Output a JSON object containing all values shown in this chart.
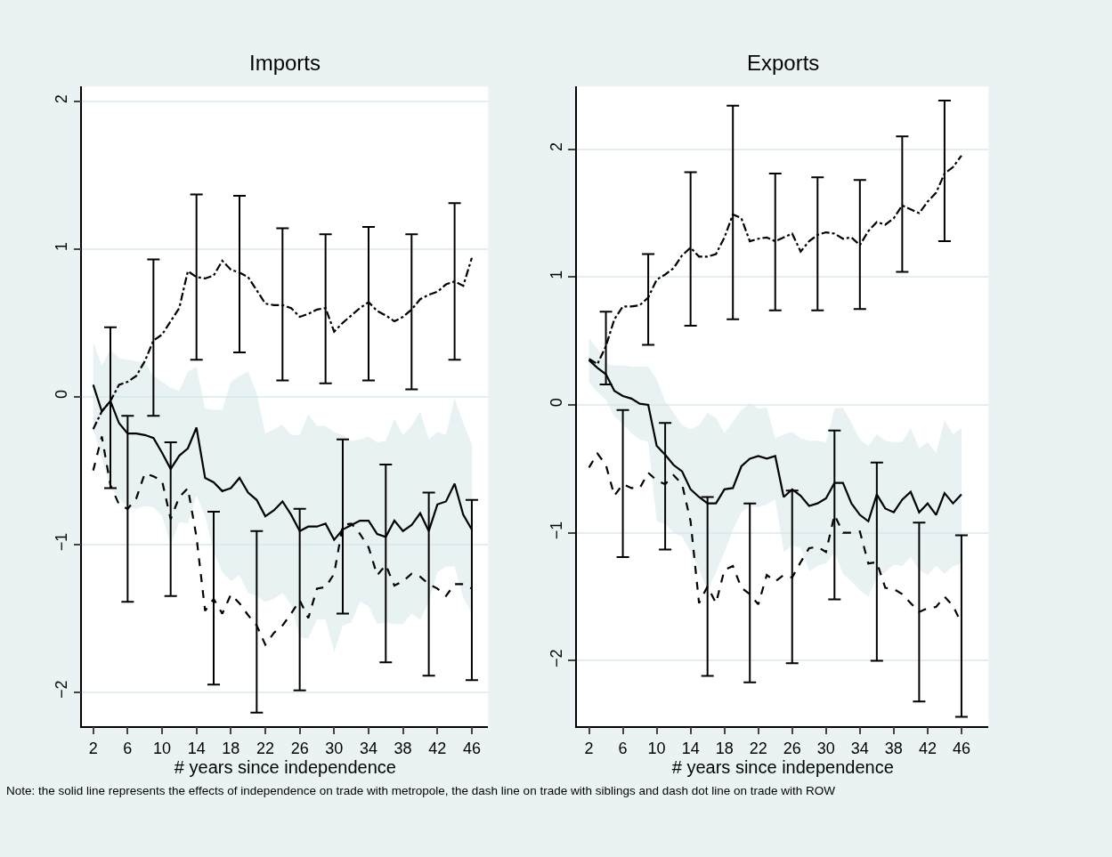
{
  "chart_data": [
    {
      "type": "line",
      "title": "Imports",
      "xlabel": "# years since independence",
      "x": [
        2,
        3,
        4,
        5,
        6,
        7,
        8,
        9,
        10,
        11,
        12,
        13,
        14,
        15,
        16,
        17,
        18,
        19,
        20,
        21,
        22,
        23,
        24,
        25,
        26,
        27,
        28,
        29,
        30,
        31,
        32,
        33,
        34,
        35,
        36,
        37,
        38,
        39,
        40,
        41,
        42,
        43,
        44,
        45,
        46
      ],
      "xlim": [
        0.73,
        47.9
      ],
      "xticks": [
        2,
        6,
        10,
        14,
        18,
        22,
        26,
        30,
        34,
        38,
        42,
        46
      ],
      "ylim": [
        -2.23,
        2.1
      ],
      "yticks": [
        -2,
        -1,
        0,
        1,
        2
      ],
      "grid": "y",
      "series": [
        {
          "color": "#000000",
          "line_style": "solid",
          "values": [
            0.08,
            -0.1,
            -0.03,
            -0.18,
            -0.25,
            -0.25,
            -0.26,
            -0.28,
            -0.38,
            -0.49,
            -0.4,
            -0.35,
            -0.21,
            -0.55,
            -0.58,
            -0.64,
            -0.62,
            -0.55,
            -0.65,
            -0.7,
            -0.81,
            -0.77,
            -0.71,
            -0.8,
            -0.91,
            -0.88,
            -0.88,
            -0.86,
            -0.97,
            -0.9,
            -0.87,
            -0.84,
            -0.84,
            -0.93,
            -0.95,
            -0.84,
            -0.91,
            -0.87,
            -0.79,
            -0.91,
            -0.73,
            -0.71,
            -0.59,
            -0.8,
            -0.9
          ],
          "upper": [
            0.37,
            0.21,
            0.32,
            0.26,
            0.25,
            0.24,
            0.23,
            0.14,
            0.1,
            0.06,
            0.04,
            0.17,
            0.2,
            -0.08,
            -0.09,
            -0.09,
            0.1,
            0.14,
            0.17,
            0.02,
            -0.25,
            -0.22,
            -0.19,
            -0.26,
            -0.26,
            -0.12,
            -0.2,
            -0.2,
            -0.24,
            -0.26,
            -0.3,
            -0.29,
            -0.27,
            -0.31,
            -0.3,
            -0.15,
            -0.26,
            -0.2,
            -0.1,
            -0.29,
            -0.24,
            -0.26,
            -0.01,
            -0.18,
            -0.32
          ],
          "lower": [
            -0.22,
            -0.42,
            -0.62,
            -0.69,
            -0.75,
            -0.76,
            -0.74,
            -0.75,
            -0.81,
            -1.0,
            -0.85,
            -0.86,
            -0.67,
            -0.81,
            -1.05,
            -1.19,
            -1.25,
            -1.21,
            -1.33,
            -1.35,
            -1.39,
            -1.37,
            -1.33,
            -1.41,
            -1.63,
            -1.64,
            -1.51,
            -1.51,
            -1.73,
            -1.55,
            -1.53,
            -1.39,
            -1.42,
            -1.54,
            -1.53,
            -1.54,
            -1.54,
            -1.47,
            -1.51,
            -1.39,
            -1.19,
            -1.15,
            -1.15,
            -1.36,
            -1.47
          ]
        },
        {
          "color": "#000000",
          "line_style": "dashed",
          "values": [
            -0.5,
            -0.27,
            -0.6,
            -0.73,
            -0.76,
            -0.69,
            -0.52,
            -0.54,
            -0.57,
            -0.83,
            -0.68,
            -0.62,
            -0.95,
            -1.45,
            -1.37,
            -1.47,
            -1.34,
            -1.4,
            -1.48,
            -1.55,
            -1.68,
            -1.6,
            -1.55,
            -1.47,
            -1.38,
            -1.5,
            -1.3,
            -1.29,
            -1.2,
            -0.87,
            -0.86,
            -0.93,
            -1.02,
            -1.21,
            -1.14,
            -1.28,
            -1.25,
            -1.2,
            -1.22,
            -1.27,
            -1.3,
            -1.35,
            -1.27,
            -1.27,
            -1.3
          ],
          "errors": [
            null,
            null,
            null,
            null,
            [
              -1.39,
              -0.13
            ],
            null,
            null,
            null,
            null,
            [
              -1.35,
              -0.31
            ],
            null,
            null,
            null,
            null,
            [
              -1.95,
              -0.78
            ],
            null,
            null,
            null,
            null,
            [
              -2.14,
              -0.91
            ],
            null,
            null,
            null,
            null,
            [
              -1.99,
              -0.76
            ],
            null,
            null,
            null,
            null,
            [
              -1.47,
              -0.29
            ],
            null,
            null,
            null,
            null,
            [
              -1.8,
              -0.46
            ],
            null,
            null,
            null,
            null,
            [
              -1.89,
              -0.65
            ],
            null,
            null,
            null,
            null,
            [
              -1.92,
              -0.7
            ]
          ]
        },
        {
          "color": "#000000",
          "line_style": "dashdot",
          "values": [
            -0.22,
            -0.1,
            -0.03,
            0.08,
            0.1,
            0.14,
            0.24,
            0.38,
            0.42,
            0.51,
            0.6,
            0.85,
            0.81,
            0.8,
            0.82,
            0.92,
            0.86,
            0.84,
            0.81,
            0.72,
            0.63,
            0.62,
            0.62,
            0.6,
            0.54,
            0.56,
            0.59,
            0.6,
            0.44,
            0.5,
            0.55,
            0.6,
            0.64,
            0.58,
            0.55,
            0.51,
            0.54,
            0.59,
            0.66,
            0.69,
            0.71,
            0.76,
            0.78,
            0.75,
            0.94
          ],
          "errors": [
            null,
            null,
            [
              -0.62,
              0.47
            ],
            null,
            null,
            null,
            null,
            [
              -0.13,
              0.93
            ],
            null,
            null,
            null,
            null,
            [
              0.25,
              1.37
            ],
            null,
            null,
            null,
            null,
            [
              0.3,
              1.36
            ],
            null,
            null,
            null,
            null,
            [
              0.11,
              1.14
            ],
            null,
            null,
            null,
            null,
            [
              0.09,
              1.1
            ],
            null,
            null,
            null,
            null,
            [
              0.11,
              1.15
            ],
            null,
            null,
            null,
            null,
            [
              0.05,
              1.1
            ],
            null,
            null,
            null,
            null,
            [
              0.25,
              1.31
            ],
            null,
            null
          ]
        }
      ]
    },
    {
      "type": "line",
      "title": "Exports",
      "xlabel": "# years since independence",
      "x": [
        2,
        3,
        4,
        5,
        6,
        7,
        8,
        9,
        10,
        11,
        12,
        13,
        14,
        15,
        16,
        17,
        18,
        19,
        20,
        21,
        22,
        23,
        24,
        25,
        26,
        27,
        28,
        29,
        30,
        31,
        32,
        33,
        34,
        35,
        36,
        37,
        38,
        39,
        40,
        41,
        42,
        43,
        44,
        45,
        46
      ],
      "xlim": [
        0.6,
        49.2
      ],
      "xticks": [
        2,
        6,
        10,
        14,
        18,
        22,
        26,
        30,
        34,
        38,
        42,
        46
      ],
      "ylim": [
        -2.51,
        2.49
      ],
      "yticks": [
        -2,
        -1,
        0,
        1,
        2
      ],
      "grid": "y",
      "annotations": [
        "Note: the solid line represents the effects of independence on trade with metropole, the dash line on trade with siblings and dash dot line on trade with ROW"
      ],
      "series": [
        {
          "color": "#000000",
          "line_style": "solid",
          "values": [
            0.35,
            0.29,
            0.24,
            0.11,
            0.07,
            0.05,
            0.01,
            0.0,
            -0.32,
            -0.39,
            -0.47,
            -0.52,
            -0.66,
            -0.72,
            -0.77,
            -0.77,
            -0.66,
            -0.65,
            -0.48,
            -0.42,
            -0.4,
            -0.42,
            -0.4,
            -0.72,
            -0.66,
            -0.71,
            -0.79,
            -0.77,
            -0.73,
            -0.61,
            -0.61,
            -0.77,
            -0.86,
            -0.91,
            -0.7,
            -0.81,
            -0.84,
            -0.74,
            -0.68,
            -0.84,
            -0.77,
            -0.86,
            -0.69,
            -0.77,
            -0.7
          ],
          "upper": [
            0.52,
            0.44,
            0.32,
            0.31,
            0.31,
            0.3,
            0.3,
            0.3,
            0.2,
            0.03,
            -0.06,
            -0.16,
            -0.19,
            -0.16,
            -0.06,
            -0.1,
            -0.22,
            -0.13,
            -0.04,
            0.01,
            -0.03,
            -0.02,
            -0.26,
            -0.23,
            -0.21,
            -0.26,
            -0.28,
            -0.28,
            -0.29,
            -0.03,
            -0.02,
            -0.14,
            -0.27,
            -0.32,
            -0.23,
            -0.28,
            -0.29,
            -0.29,
            -0.18,
            -0.34,
            -0.29,
            -0.38,
            -0.12,
            -0.23,
            -0.18
          ],
          "lower": [
            0.18,
            0.1,
            0.04,
            -0.09,
            -0.15,
            -0.22,
            -0.27,
            -0.29,
            -0.91,
            -0.93,
            -1.0,
            -1.03,
            -1.15,
            -1.29,
            -1.45,
            -1.31,
            -1.15,
            -0.98,
            -0.84,
            -0.79,
            -0.8,
            -0.78,
            -0.74,
            -1.15,
            -1.1,
            -1.12,
            -1.3,
            -1.26,
            -1.24,
            -1.15,
            -1.32,
            -1.38,
            -1.45,
            -1.5,
            -1.35,
            -1.31,
            -1.25,
            -1.26,
            -1.19,
            -1.29,
            -1.33,
            -1.26,
            -1.32,
            -1.26,
            -1.24
          ]
        },
        {
          "color": "#000000",
          "line_style": "dashed",
          "values": [
            -0.49,
            -0.38,
            -0.47,
            -0.71,
            -0.62,
            -0.65,
            -0.65,
            -0.53,
            -0.59,
            -0.62,
            -0.55,
            -0.62,
            -0.91,
            -1.55,
            -1.42,
            -1.55,
            -1.29,
            -1.26,
            -1.43,
            -1.48,
            -1.56,
            -1.33,
            -1.38,
            -1.33,
            -1.35,
            -1.23,
            -1.12,
            -1.11,
            -1.15,
            -0.86,
            -1.0,
            -1.0,
            -0.99,
            -1.24,
            -1.23,
            -1.43,
            -1.44,
            -1.48,
            -1.55,
            -1.62,
            -1.59,
            -1.58,
            -1.5,
            -1.57,
            -1.71
          ],
          "errors": [
            null,
            null,
            null,
            null,
            [
              -1.19,
              -0.04
            ],
            null,
            null,
            null,
            null,
            [
              -1.13,
              -0.14
            ],
            null,
            null,
            null,
            null,
            [
              -2.12,
              -0.72
            ],
            null,
            null,
            null,
            null,
            [
              -2.17,
              -0.77
            ],
            null,
            null,
            null,
            null,
            [
              -2.02,
              -0.67
            ],
            null,
            null,
            null,
            null,
            [
              -1.52,
              -0.2
            ],
            null,
            null,
            null,
            null,
            [
              -2.0,
              -0.45
            ],
            null,
            null,
            null,
            null,
            [
              -2.32,
              -0.92
            ],
            null,
            null,
            null,
            null,
            [
              -2.44,
              -1.02
            ]
          ]
        },
        {
          "color": "#000000",
          "line_style": "dashdot",
          "values": [
            0.36,
            0.32,
            0.46,
            0.67,
            0.77,
            0.77,
            0.78,
            0.84,
            0.98,
            1.02,
            1.07,
            1.17,
            1.23,
            1.16,
            1.16,
            1.18,
            1.31,
            1.49,
            1.46,
            1.28,
            1.3,
            1.31,
            1.28,
            1.31,
            1.34,
            1.2,
            1.28,
            1.33,
            1.35,
            1.34,
            1.3,
            1.31,
            1.25,
            1.36,
            1.43,
            1.41,
            1.46,
            1.56,
            1.53,
            1.5,
            1.59,
            1.66,
            1.81,
            1.86,
            1.95
          ],
          "errors": [
            null,
            null,
            [
              0.16,
              0.73
            ],
            null,
            null,
            null,
            null,
            [
              0.47,
              1.18
            ],
            null,
            null,
            null,
            null,
            [
              0.62,
              1.82
            ],
            null,
            null,
            null,
            null,
            [
              0.67,
              2.34
            ],
            null,
            null,
            null,
            null,
            [
              0.74,
              1.81
            ],
            null,
            null,
            null,
            null,
            [
              0.74,
              1.78
            ],
            null,
            null,
            null,
            null,
            [
              0.75,
              1.76
            ],
            null,
            null,
            null,
            null,
            [
              1.04,
              2.1
            ],
            null,
            null,
            null,
            null,
            [
              1.28,
              2.38
            ],
            null,
            null
          ]
        }
      ]
    }
  ]
}
